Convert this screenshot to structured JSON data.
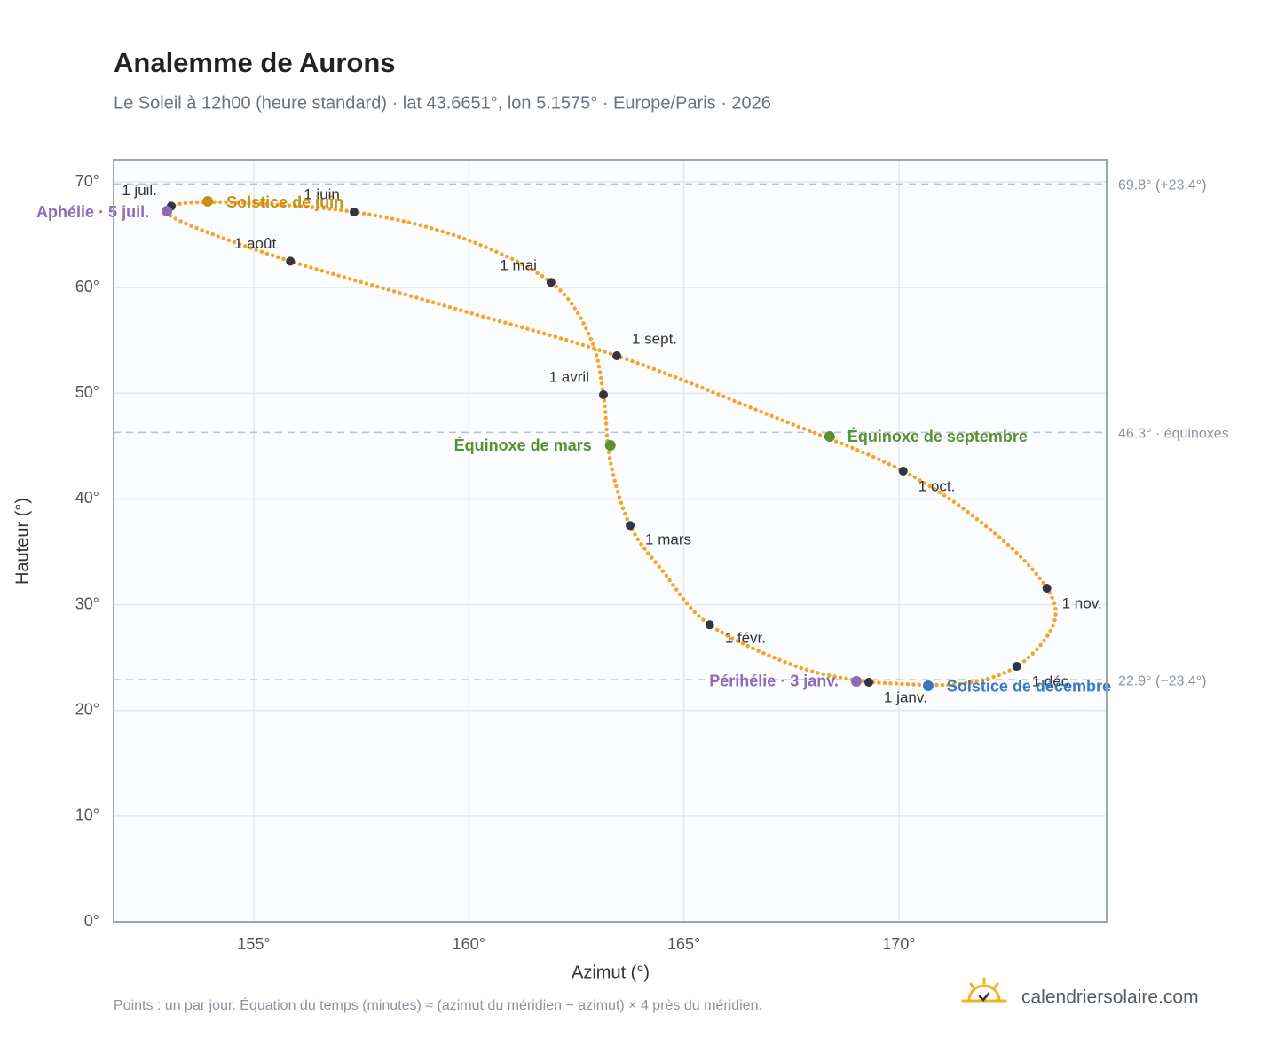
{
  "chart_data": {
    "type": "analemma",
    "title": "Analemme de Aurons",
    "subtitle": "Le Soleil à 12h00 (heure standard) · lat 43.6651°, lon 5.1575° · Europe/Paris · 2026",
    "xlabel": "Azimut (°)",
    "ylabel": "Hauteur (°)",
    "footnote": "Points : un par jour. Équation du temps (minutes) ≈ (azimut du méridien − azimut) × 4 près du méridien.",
    "brand": "calendriersolaire.com",
    "xlim": [
      151.74,
      174.83
    ],
    "ylim": [
      0,
      72.1
    ],
    "xticks": [
      {
        "value": 155,
        "label": "155°"
      },
      {
        "value": 160,
        "label": "160°"
      },
      {
        "value": 165,
        "label": "165°"
      },
      {
        "value": 170,
        "label": "170°"
      }
    ],
    "yticks": [
      {
        "value": 0,
        "label": "0°"
      },
      {
        "value": 10,
        "label": "10°"
      },
      {
        "value": 20,
        "label": "20°"
      },
      {
        "value": 30,
        "label": "30°"
      },
      {
        "value": 40,
        "label": "40°"
      },
      {
        "value": 50,
        "label": "50°"
      },
      {
        "value": 60,
        "label": "60°"
      },
      {
        "value": 70,
        "label": "70°"
      }
    ],
    "grid": true,
    "path": {
      "color": "#f2a52a",
      "x": [
        169.3,
        167.67,
        165.6,
        164.53,
        163.75,
        163.29,
        163.13,
        162.82,
        161.91,
        159.83,
        157.33,
        154.36,
        153.08,
        153.33,
        155.85,
        159.62,
        163.44,
        166.84,
        170.1,
        172.2,
        173.44,
        173.58,
        172.74,
        171.38,
        169.3
      ],
      "y": [
        22.66,
        24.09,
        28.1,
        33.07,
        37.5,
        43.56,
        49.86,
        55.31,
        60.5,
        64.71,
        67.15,
        68.07,
        67.7,
        66.22,
        62.5,
        58.08,
        53.55,
        48.18,
        42.64,
        36.85,
        31.56,
        28.03,
        24.17,
        22.49,
        22.66
      ]
    },
    "reference_lines": [
      {
        "value": 69.8,
        "label": "69.8° (+23.4°)"
      },
      {
        "value": 46.3,
        "label": "46.3° · équinoxes"
      },
      {
        "value": 22.9,
        "label": "22.9° (−23.4°)"
      }
    ],
    "months": {
      "color": "#2f3640",
      "labels": [
        "1 janv.",
        "1 févr.",
        "1 mars",
        "1 avril",
        "1 mai",
        "1 juin",
        "1 juil.",
        "1 août",
        "1 sept.",
        "1 oct.",
        "1 nov.",
        "1 déc."
      ],
      "x": [
        169.3,
        165.6,
        163.75,
        163.13,
        161.91,
        157.33,
        153.08,
        155.85,
        163.44,
        170.1,
        173.44,
        172.74
      ],
      "y": [
        22.66,
        28.1,
        37.5,
        49.86,
        60.5,
        67.15,
        67.7,
        62.5,
        53.55,
        42.64,
        31.56,
        24.17
      ]
    },
    "events": [
      {
        "label": "Solstice de juin",
        "x": 153.93,
        "y": 68.15,
        "color": "#c8900f"
      },
      {
        "label": "Aphélie · 5 juil.",
        "x": 152.98,
        "y": 67.23,
        "color": "#8e6bb5"
      },
      {
        "label": "Équinoxe de mars",
        "x": 163.29,
        "y": 45.07,
        "color": "#5a8f32"
      },
      {
        "label": "Équinoxe de septembre",
        "x": 168.39,
        "y": 45.91,
        "color": "#5a8f32"
      },
      {
        "label": "Périhélie · 3 janv.",
        "x": 169.01,
        "y": 22.75,
        "color": "#8e6bb5"
      },
      {
        "label": "Solstice de décembre",
        "x": 170.68,
        "y": 22.33,
        "color": "#3a78bd"
      }
    ]
  }
}
